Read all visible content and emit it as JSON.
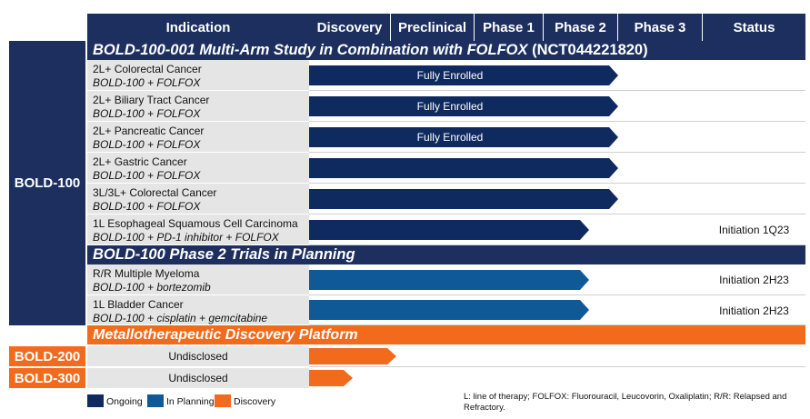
{
  "header": {
    "indication": "Indication",
    "phases": [
      "Discovery",
      "Preclinical",
      "Phase 1",
      "Phase 2",
      "Phase 3"
    ],
    "status": "Status"
  },
  "programs": {
    "bold100": "BOLD-100",
    "bold200": "BOLD-200",
    "bold300": "BOLD-300"
  },
  "sections": {
    "folfox_italic": "BOLD-100-001 Multi-Arm Study in Combination with FOLFOX",
    "folfox_nct": "(NCT044221820)",
    "planning": "BOLD-100 Phase 2 Trials in Planning",
    "platform": "Metallotherapeutic Discovery Platform"
  },
  "rows": [
    {
      "indication": "2L+ Colorectal Cancer",
      "drug": "BOLD-100 + FOLFOX",
      "bar_label": "Fully Enrolled",
      "status": "",
      "reached_phase": "Phase 2",
      "state": "Ongoing"
    },
    {
      "indication": "2L+ Biliary Tract Cancer",
      "drug": "BOLD-100 + FOLFOX",
      "bar_label": "Fully Enrolled",
      "status": "",
      "reached_phase": "Phase 2",
      "state": "Ongoing"
    },
    {
      "indication": "2L+ Pancreatic Cancer",
      "drug": "BOLD-100 + FOLFOX",
      "bar_label": "Fully Enrolled",
      "status": "",
      "reached_phase": "Phase 2",
      "state": "Ongoing"
    },
    {
      "indication": "2L+ Gastric Cancer",
      "drug": "BOLD-100 + FOLFOX",
      "bar_label": "",
      "status": "",
      "reached_phase": "Phase 2",
      "state": "Ongoing"
    },
    {
      "indication": "3L/3L+ Colorectal Cancer",
      "drug": "BOLD-100 + FOLFOX",
      "bar_label": "",
      "status": "",
      "reached_phase": "Phase 2",
      "state": "Ongoing"
    },
    {
      "indication": "1L Esophageal Squamous Cell Carcinoma",
      "drug": "BOLD-100 + PD-1 inhibitor + FOLFOX",
      "bar_label": "",
      "status": "Initiation 1Q23",
      "reached_phase": "Phase 2",
      "state": "Ongoing"
    },
    {
      "indication": "R/R Multiple Myeloma",
      "drug": "BOLD-100 + bortezomib",
      "bar_label": "",
      "status": "Initiation 2H23",
      "reached_phase": "Phase 2",
      "state": "In Planning"
    },
    {
      "indication": "1L Bladder Cancer",
      "drug": "BOLD-100 + cisplatin + gemcitabine",
      "bar_label": "",
      "status": "Initiation 2H23",
      "reached_phase": "Phase 2",
      "state": "In Planning"
    },
    {
      "indication": "Undisclosed",
      "drug": "",
      "bar_label": "",
      "status": "",
      "reached_phase": "Discovery",
      "state": "Discovery"
    },
    {
      "indication": "Undisclosed",
      "drug": "",
      "bar_label": "",
      "status": "",
      "reached_phase": "Discovery",
      "state": "Discovery"
    }
  ],
  "legend": [
    {
      "label": "Ongoing",
      "color": "#0f2a5f"
    },
    {
      "label": "In Planning",
      "color": "#0f5a96"
    },
    {
      "label": "Discovery",
      "color": "#f26b1d"
    }
  ],
  "footnote": "L: line of therapy; FOLFOX: Fluorouracil, Leucovorin, Oxaliplatin; R/R: Relapsed and Refractory."
}
